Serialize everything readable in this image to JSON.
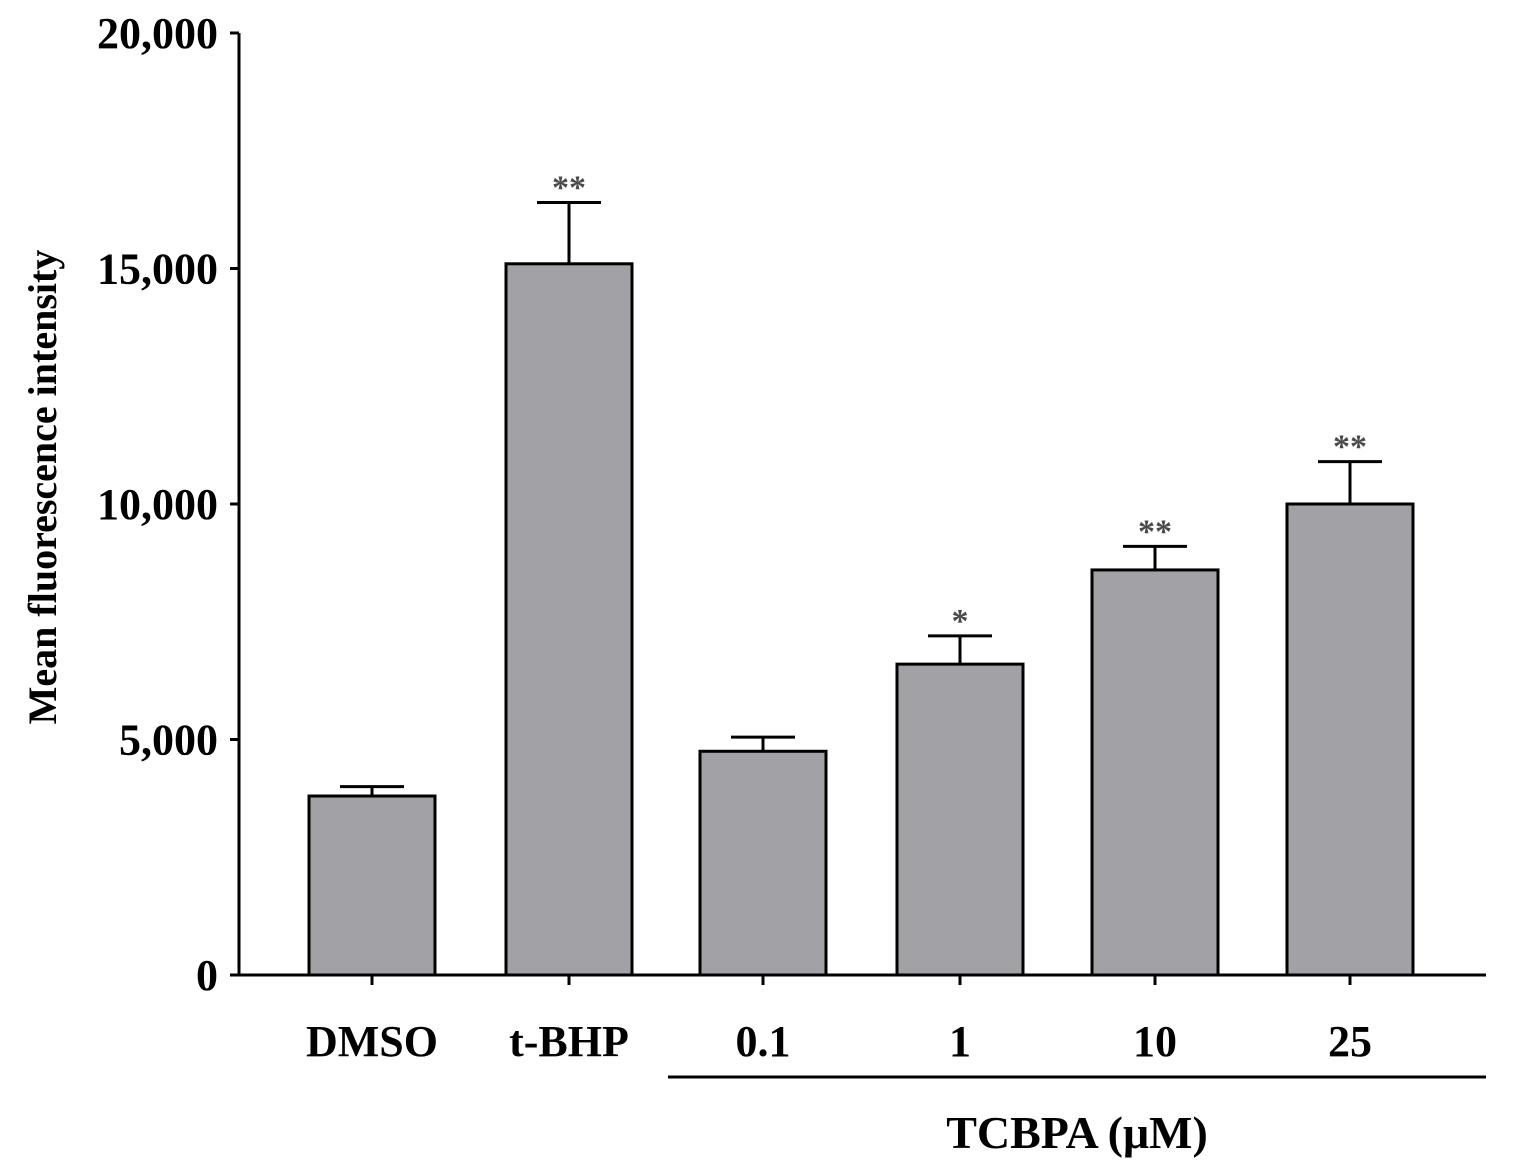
{
  "chart_data": {
    "type": "bar",
    "title": "",
    "xlabel": "",
    "ylabel": "Mean fluorescence intensity",
    "ylim": [
      0,
      20000
    ],
    "yticks": [
      0,
      5000,
      10000,
      15000,
      20000
    ],
    "ytick_labels": [
      "0",
      "5,000",
      "10,000",
      "15,000",
      "20,000"
    ],
    "categories": [
      "DMSO",
      "t-BHP",
      "0.1",
      "1",
      "10",
      "25"
    ],
    "values": [
      3800,
      15100,
      4750,
      6600,
      8600,
      10000
    ],
    "errors": [
      200,
      1300,
      300,
      600,
      500,
      900
    ],
    "significance": [
      "",
      "**",
      "",
      "*",
      "**",
      "**"
    ],
    "group": {
      "label": "TCBPA (μM)",
      "categories": [
        "0.1",
        "1",
        "10",
        "25"
      ]
    },
    "grid": false,
    "legend": "none"
  },
  "colors": {
    "bar_fill": "#a2a1a6",
    "bar_stroke": "#000000",
    "axis": "#000000",
    "significance": "#4a4a4a",
    "background": "#ffffff"
  }
}
